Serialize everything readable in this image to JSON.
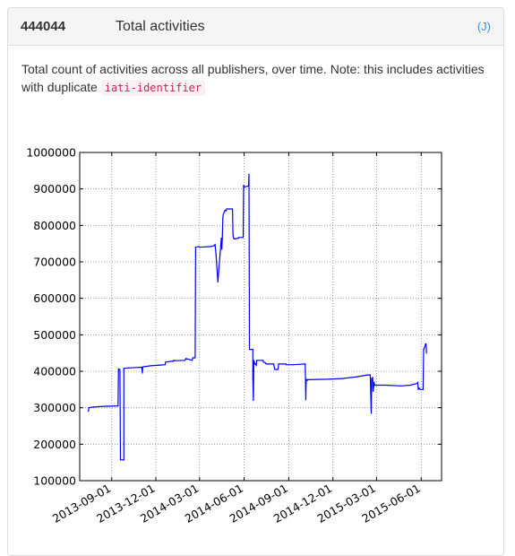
{
  "panel": {
    "count": "444044",
    "title": "Total activities",
    "json_link": "(J)",
    "description_before": "Total count of activities across all publishers, over time. Note: this includes activities with duplicate",
    "description_code": "iati-identifier"
  },
  "colors": {
    "line": "#0000ff",
    "grid": "#888888",
    "heading_bg": "#f5f5f5",
    "link": "#428bca",
    "code_text": "#c7254e",
    "code_bg": "#f9f2f4"
  },
  "chart_data": {
    "type": "line",
    "title": "",
    "xlabel": "",
    "ylabel": "",
    "grid": true,
    "ylim": [
      100000,
      1000000
    ],
    "yticks": [
      "100000",
      "200000",
      "300000",
      "400000",
      "500000",
      "600000",
      "700000",
      "800000",
      "900000",
      "1000000"
    ],
    "xlim": [
      "2013-06-27",
      "2015-07-13"
    ],
    "xticks": [
      "2013-09-01",
      "2013-12-01",
      "2014-03-01",
      "2014-06-01",
      "2014-09-01",
      "2014-12-01",
      "2015-03-01",
      "2015-06-01"
    ],
    "series": [
      {
        "x": [
          "2013-07-15",
          "2013-07-16",
          "2013-07-25",
          "2013-08-20",
          "2013-08-25",
          "2013-09-14",
          "2013-09-15",
          "2013-09-15",
          "2013-09-16",
          "2013-09-18",
          "2013-09-19",
          "2013-09-25",
          "2013-09-26",
          "2013-09-26",
          "2013-10-05",
          "2013-11-02",
          "2013-11-03",
          "2013-11-04",
          "2013-11-20",
          "2013-12-10",
          "2013-12-20",
          "2013-12-21",
          "2014-01-05",
          "2014-01-06",
          "2014-01-07",
          "2014-01-10",
          "2014-01-30",
          "2014-02-01",
          "2014-02-14",
          "2014-02-15",
          "2014-02-20",
          "2014-02-21",
          "2014-02-28",
          "2014-03-01",
          "2014-03-25",
          "2014-04-01",
          "2014-04-02",
          "2014-04-04",
          "2014-04-08",
          "2014-04-15",
          "2014-04-16",
          "2014-04-17",
          "2014-04-18",
          "2014-04-19",
          "2014-04-22",
          "2014-04-23",
          "2014-04-25",
          "2014-04-26",
          "2014-05-08",
          "2014-05-09",
          "2014-05-10",
          "2014-05-12",
          "2014-05-20",
          "2014-05-21",
          "2014-05-30",
          "2014-05-31",
          "2014-06-01",
          "2014-06-10",
          "2014-06-11",
          "2014-06-12",
          "2014-06-19",
          "2014-06-19",
          "2014-06-20",
          "2014-06-21",
          "2014-06-22",
          "2014-06-23",
          "2014-06-24",
          "2014-06-25",
          "2014-06-26",
          "2014-06-27",
          "2014-07-10",
          "2014-07-11",
          "2014-07-15",
          "2014-07-16",
          "2014-07-20",
          "2014-08-01",
          "2014-08-03",
          "2014-08-10",
          "2014-08-11",
          "2014-08-26",
          "2014-08-27",
          "2014-09-10",
          "2014-10-05",
          "2014-10-06",
          "2014-10-07",
          "2014-10-09",
          "2014-10-10",
          "2014-11-20",
          "2014-12-20",
          "2015-01-20",
          "2015-02-10",
          "2015-02-16",
          "2015-02-18",
          "2015-02-19",
          "2015-02-21",
          "2015-02-22",
          "2015-02-24",
          "2015-02-25",
          "2015-03-20",
          "2015-04-20",
          "2015-05-10",
          "2015-05-24",
          "2015-05-25",
          "2015-05-26",
          "2015-05-27",
          "2015-05-30",
          "2015-06-05",
          "2015-06-06",
          "2015-06-08",
          "2015-06-10",
          "2015-06-11",
          "2015-06-12"
        ],
        "y": [
          290000,
          300000,
          302000,
          304000,
          304000,
          305000,
          405000,
          407000,
          405000,
          405000,
          157000,
          157000,
          157000,
          408000,
          409000,
          411000,
          395000,
          412000,
          415000,
          417000,
          418000,
          425000,
          428000,
          427000,
          430000,
          429000,
          430000,
          435000,
          430000,
          437000,
          437000,
          740000,
          742000,
          740000,
          742000,
          745000,
          748000,
          720000,
          645000,
          765000,
          735000,
          765000,
          820000,
          830000,
          840000,
          842000,
          840000,
          845000,
          845000,
          775000,
          765000,
          763000,
          765000,
          767000,
          767000,
          910000,
          905000,
          908000,
          940000,
          460000,
          460000,
          380000,
          320000,
          430000,
          425000,
          420000,
          420000,
          420000,
          415000,
          430000,
          430000,
          425000,
          423000,
          420000,
          420000,
          420000,
          405000,
          405000,
          420000,
          420000,
          418000,
          418000,
          420000,
          322000,
          378000,
          375000,
          377000,
          378000,
          380000,
          385000,
          390000,
          390000,
          285000,
          380000,
          383000,
          345000,
          370000,
          362000,
          362000,
          360000,
          362000,
          367000,
          370000,
          350000,
          355000,
          350000,
          350000,
          460000,
          465000,
          475000,
          475000,
          450000
        ]
      }
    ]
  }
}
